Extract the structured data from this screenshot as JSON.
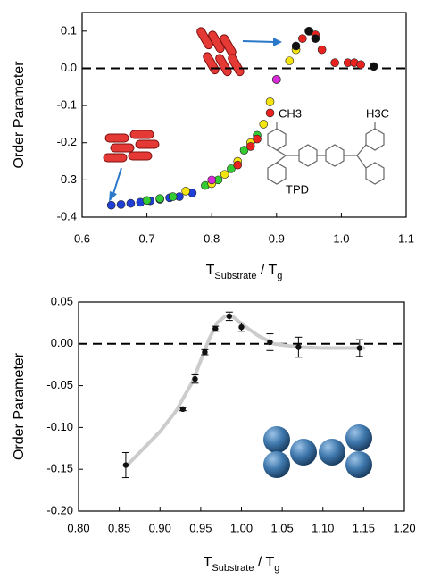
{
  "chart_data": [
    {
      "type": "scatter",
      "ylabel": "Order Parameter",
      "xlabel": [
        "T",
        "Substrate",
        " / T",
        "g"
      ],
      "xlim": [
        0.6,
        1.1
      ],
      "xticks": [
        0.6,
        0.7,
        0.8,
        0.9,
        {
          "value": 1.0,
          "label": "1.0"
        },
        1.1
      ],
      "ylim": [
        -0.4,
        0.15
      ],
      "yticks": [
        -0.4,
        -0.3,
        -0.2,
        -0.1,
        {
          "value": 0,
          "label": "0.0"
        },
        0.1
      ],
      "hline": 0,
      "annotations": [
        "TPD",
        "CH3",
        "H3C"
      ],
      "series": [
        {
          "color": "#1f3fd6",
          "x": [
            0.645,
            0.66,
            0.675,
            0.69,
            0.705,
            0.72,
            0.735,
            0.75,
            0.77
          ],
          "values": [
            -0.368,
            -0.366,
            -0.363,
            -0.36,
            -0.356,
            -0.352,
            -0.348,
            -0.345,
            -0.335
          ]
        },
        {
          "color": "#33cc33",
          "x": [
            0.7,
            0.72,
            0.74,
            0.79,
            0.81,
            0.83,
            0.85,
            0.87
          ],
          "values": [
            -0.355,
            -0.35,
            -0.345,
            -0.315,
            -0.3,
            -0.27,
            -0.22,
            -0.18
          ]
        },
        {
          "color": "#f4e410",
          "x": [
            0.76,
            0.8,
            0.82,
            0.84,
            0.86,
            0.88,
            0.89,
            0.9,
            0.92,
            0.93
          ],
          "values": [
            -0.33,
            -0.31,
            -0.285,
            -0.25,
            -0.2,
            -0.15,
            -0.09,
            -0.03,
            0.02,
            0.05
          ]
        },
        {
          "color": "#e8231f",
          "x": [
            0.84,
            0.86,
            0.87,
            0.89,
            0.94,
            0.95,
            0.96,
            0.97,
            0.99,
            1.01,
            1.02,
            1.03
          ],
          "values": [
            -0.26,
            -0.21,
            -0.19,
            -0.12,
            0.08,
            0.1,
            0.09,
            0.05,
            0.015,
            0.015,
            0.015,
            0.01
          ]
        },
        {
          "color": "#d62bd6",
          "x": [
            0.8,
            0.9
          ],
          "values": [
            -0.3,
            -0.03
          ]
        },
        {
          "color": "#111111",
          "x": [
            0.93,
            0.95,
            0.96,
            1.05
          ],
          "values": [
            0.06,
            0.1,
            0.08,
            0.005
          ]
        }
      ]
    },
    {
      "type": "scatter",
      "ylabel": "Order Parameter",
      "xlabel": [
        "T",
        "Substrate",
        " / T",
        "g"
      ],
      "xlim": [
        0.8,
        1.2
      ],
      "xticks": [
        {
          "value": 0.8,
          "label": "0.80"
        },
        {
          "value": 0.85,
          "label": "0.85"
        },
        {
          "value": 0.9,
          "label": "0.90"
        },
        {
          "value": 0.95,
          "label": "0.95"
        },
        {
          "value": 1.0,
          "label": "1.00"
        },
        {
          "value": 1.05,
          "label": "1.05"
        },
        {
          "value": 1.1,
          "label": "1.10"
        },
        {
          "value": 1.15,
          "label": "1.15"
        },
        {
          "value": 1.2,
          "label": "1.20"
        }
      ],
      "ylim": [
        -0.2,
        0.05
      ],
      "yticks": [
        {
          "value": -0.2,
          "label": "-0.20"
        },
        {
          "value": -0.15,
          "label": "-0.15"
        },
        {
          "value": -0.1,
          "label": "-0.10"
        },
        {
          "value": -0.05,
          "label": "-0.05"
        },
        {
          "value": 0,
          "label": "0.00"
        },
        {
          "value": 0.05,
          "label": "0.05"
        }
      ],
      "hline": 0,
      "fit": {
        "color": "#cccccc",
        "x": [
          0.86,
          0.88,
          0.9,
          0.92,
          0.94,
          0.95,
          0.96,
          0.97,
          0.98,
          0.99,
          1.0,
          1.02,
          1.04,
          1.07,
          1.1,
          1.15
        ],
        "y": [
          -0.145,
          -0.125,
          -0.105,
          -0.08,
          -0.045,
          -0.02,
          0.005,
          0.025,
          0.033,
          0.032,
          0.024,
          0.01,
          0.0,
          -0.004,
          -0.005,
          -0.005
        ]
      },
      "series": [
        {
          "color": "#111111",
          "x": [
            0.858,
            0.928,
            0.943,
            0.955,
            0.968,
            0.985,
            1.0,
            1.035,
            1.07,
            1.145
          ],
          "values": [
            -0.145,
            -0.078,
            -0.042,
            -0.01,
            0.018,
            0.033,
            0.02,
            0.002,
            -0.004,
            -0.005
          ],
          "errors": [
            0.015,
            0.002,
            0.005,
            0.003,
            0.003,
            0.005,
            0.005,
            0.01,
            0.012,
            0.01
          ]
        }
      ]
    }
  ]
}
